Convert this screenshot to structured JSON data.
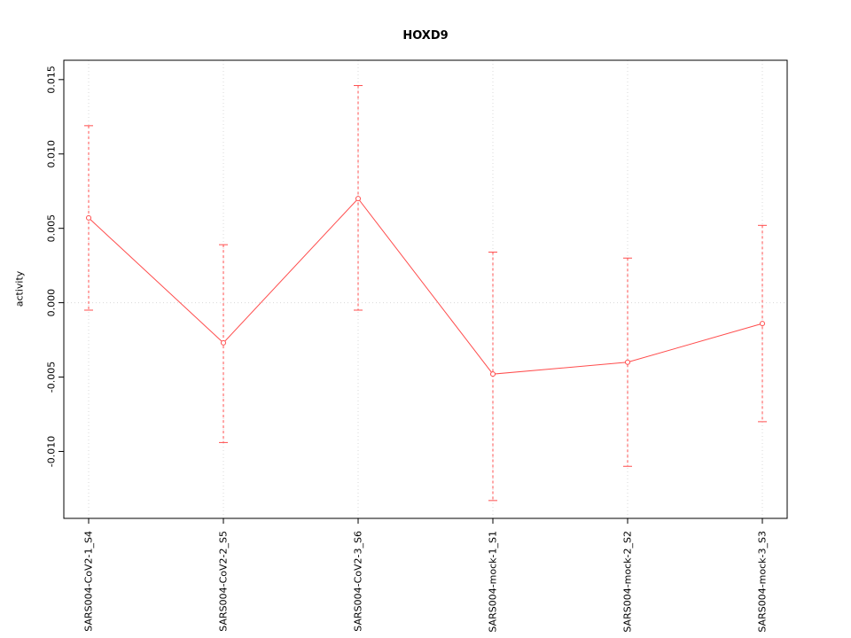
{
  "chart_data": {
    "type": "line",
    "title": "HOXD9",
    "ylabel": "activity",
    "xlabel": "",
    "categories": [
      "SARS004-CoV2-1_S4",
      "SARS004-CoV2-2_S5",
      "SARS004-CoV2-3_S6",
      "SARS004-mock-1_S1",
      "SARS004-mock-2_S2",
      "SARS004-mock-3_S3"
    ],
    "values": [
      0.0057,
      -0.0027,
      0.007,
      -0.0048,
      -0.004,
      -0.0014
    ],
    "error_low": [
      -0.0005,
      -0.0094,
      -0.0005,
      -0.0133,
      -0.011,
      -0.008
    ],
    "error_high": [
      0.0119,
      0.0039,
      0.0146,
      0.0034,
      0.003,
      0.0052
    ],
    "yticks": [
      -0.01,
      -0.005,
      0.0,
      0.005,
      0.01,
      0.015
    ],
    "ytick_labels": [
      "-0.010",
      "-0.005",
      "0.000",
      "0.005",
      "0.010",
      "0.015"
    ],
    "ylim": [
      -0.0145,
      0.0163
    ],
    "zero_line": 0,
    "series_color": "#ff4d4d",
    "grid_color": "#d9d9d9",
    "axis_color": "#000000",
    "legend": "none",
    "grid": "dotted vertical per category + dotted horizontal at zero"
  }
}
